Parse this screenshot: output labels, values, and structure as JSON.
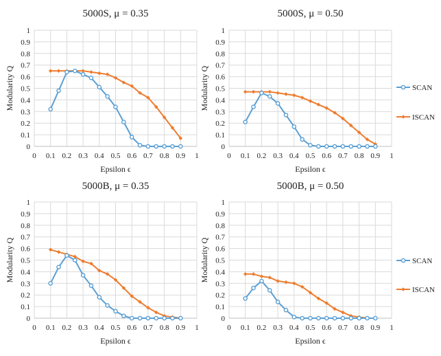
{
  "colors": {
    "scan": "#5a9fd4",
    "iscan": "#ed7d31",
    "grid": "#d9d9d9",
    "axis": "#bfbfbf"
  },
  "legend": {
    "position": "right",
    "items": [
      {
        "name": "SCAN",
        "key": "scan"
      },
      {
        "name": "ISCAN",
        "key": "iscan"
      }
    ]
  },
  "chart_data": [
    {
      "type": "line",
      "title": "5000S, μ = 0.35",
      "xlabel": "Epsilon ϵ",
      "ylabel": "Modularity Q",
      "xlim": [
        0,
        1
      ],
      "ylim": [
        0,
        1
      ],
      "xticks": [
        "0",
        "0.1",
        "0.2",
        "0.3",
        "0.4",
        "0.5",
        "0.6",
        "0.7",
        "0.8",
        "0.9",
        "1"
      ],
      "yticks": [
        "0",
        "0.1",
        "0.2",
        "0.3",
        "0.4",
        "0.5",
        "0.6",
        "0.7",
        "0.8",
        "0.9",
        "1"
      ],
      "grid": true,
      "x": [
        0.1,
        0.15,
        0.2,
        0.25,
        0.3,
        0.35,
        0.4,
        0.45,
        0.5,
        0.55,
        0.6,
        0.65,
        0.7,
        0.75,
        0.8,
        0.85,
        0.9
      ],
      "series": [
        {
          "name": "SCAN",
          "values": [
            0.32,
            0.48,
            0.64,
            0.65,
            0.62,
            0.59,
            0.51,
            0.43,
            0.34,
            0.21,
            0.08,
            0.01,
            0.0,
            0.0,
            0.0,
            0.0,
            0.0
          ]
        },
        {
          "name": "ISCAN",
          "values": [
            0.65,
            0.65,
            0.65,
            0.65,
            0.65,
            0.64,
            0.63,
            0.62,
            0.59,
            0.55,
            0.52,
            0.46,
            0.42,
            0.34,
            0.25,
            0.16,
            0.07
          ]
        }
      ]
    },
    {
      "type": "line",
      "title": "5000S, μ = 0.50",
      "xlabel": "Epsilon ϵ",
      "ylabel": "Modularity Q",
      "xlim": [
        0,
        1
      ],
      "ylim": [
        0,
        1
      ],
      "xticks": [
        "0",
        "0.1",
        "0.2",
        "0.3",
        "0.4",
        "0.5",
        "0.6",
        "0.7",
        "0.8",
        "0.9",
        "1"
      ],
      "yticks": [
        "0",
        "0.1",
        "0.2",
        "0.3",
        "0.4",
        "0.5",
        "0.6",
        "0.7",
        "0.8",
        "0.9",
        "1"
      ],
      "grid": true,
      "x": [
        0.1,
        0.15,
        0.2,
        0.25,
        0.3,
        0.35,
        0.4,
        0.45,
        0.5,
        0.55,
        0.6,
        0.65,
        0.7,
        0.75,
        0.8,
        0.85,
        0.9
      ],
      "series": [
        {
          "name": "SCAN",
          "values": [
            0.21,
            0.34,
            0.46,
            0.43,
            0.37,
            0.27,
            0.17,
            0.06,
            0.01,
            0.0,
            0.0,
            0.0,
            0.0,
            0.0,
            0.0,
            0.0,
            0.0
          ]
        },
        {
          "name": "ISCAN",
          "values": [
            0.47,
            0.47,
            0.47,
            0.47,
            0.46,
            0.45,
            0.44,
            0.42,
            0.39,
            0.36,
            0.33,
            0.29,
            0.24,
            0.18,
            0.12,
            0.06,
            0.02
          ]
        }
      ]
    },
    {
      "type": "line",
      "title": "5000B, μ = 0.35",
      "xlabel": "Epsilon ϵ",
      "ylabel": "Modularity Q",
      "xlim": [
        0,
        1
      ],
      "ylim": [
        0,
        1
      ],
      "xticks": [
        "0",
        "0.1",
        "0.2",
        "0.3",
        "0.4",
        "0.5",
        "0.6",
        "0.7",
        "0.8",
        "0.9",
        "1"
      ],
      "yticks": [
        "0",
        "0.1",
        "0.2",
        "0.3",
        "0.4",
        "0.5",
        "0.6",
        "0.7",
        "0.8",
        "0.9",
        "1"
      ],
      "grid": true,
      "x": [
        0.1,
        0.15,
        0.2,
        0.25,
        0.3,
        0.35,
        0.4,
        0.45,
        0.5,
        0.55,
        0.6,
        0.65,
        0.7,
        0.75,
        0.8,
        0.85,
        0.9
      ],
      "series": [
        {
          "name": "SCAN",
          "values": [
            0.3,
            0.44,
            0.54,
            0.5,
            0.37,
            0.28,
            0.18,
            0.11,
            0.06,
            0.02,
            0.0,
            0.0,
            0.0,
            0.0,
            0.0,
            0.0,
            0.0
          ]
        },
        {
          "name": "ISCAN",
          "values": [
            0.59,
            0.57,
            0.55,
            0.53,
            0.49,
            0.47,
            0.41,
            0.38,
            0.33,
            0.26,
            0.19,
            0.14,
            0.09,
            0.05,
            0.02,
            0.01,
            0.0
          ]
        }
      ]
    },
    {
      "type": "line",
      "title": "5000B, μ = 0.50",
      "xlabel": "Epsilon ϵ",
      "ylabel": "Modularity Q",
      "xlim": [
        0,
        1
      ],
      "ylim": [
        0,
        1
      ],
      "xticks": [
        "0",
        "0.1",
        "0.2",
        "0.3",
        "0.4",
        "0.5",
        "0.6",
        "0.7",
        "0.8",
        "0.9",
        "1"
      ],
      "yticks": [
        "0",
        "0.1",
        "0.2",
        "0.3",
        "0.4",
        "0.5",
        "0.6",
        "0.7",
        "0.8",
        "0.9",
        "1"
      ],
      "grid": true,
      "x": [
        0.1,
        0.15,
        0.2,
        0.25,
        0.3,
        0.35,
        0.4,
        0.45,
        0.5,
        0.55,
        0.6,
        0.65,
        0.7,
        0.75,
        0.8,
        0.85,
        0.9
      ],
      "series": [
        {
          "name": "SCAN",
          "values": [
            0.17,
            0.26,
            0.32,
            0.24,
            0.14,
            0.07,
            0.01,
            0.0,
            0.0,
            0.0,
            0.0,
            0.0,
            0.0,
            0.0,
            0.0,
            0.0,
            0.0
          ]
        },
        {
          "name": "ISCAN",
          "values": [
            0.38,
            0.38,
            0.36,
            0.35,
            0.32,
            0.31,
            0.3,
            0.27,
            0.22,
            0.17,
            0.13,
            0.08,
            0.05,
            0.02,
            0.01,
            0.0,
            0.0
          ]
        }
      ]
    }
  ]
}
